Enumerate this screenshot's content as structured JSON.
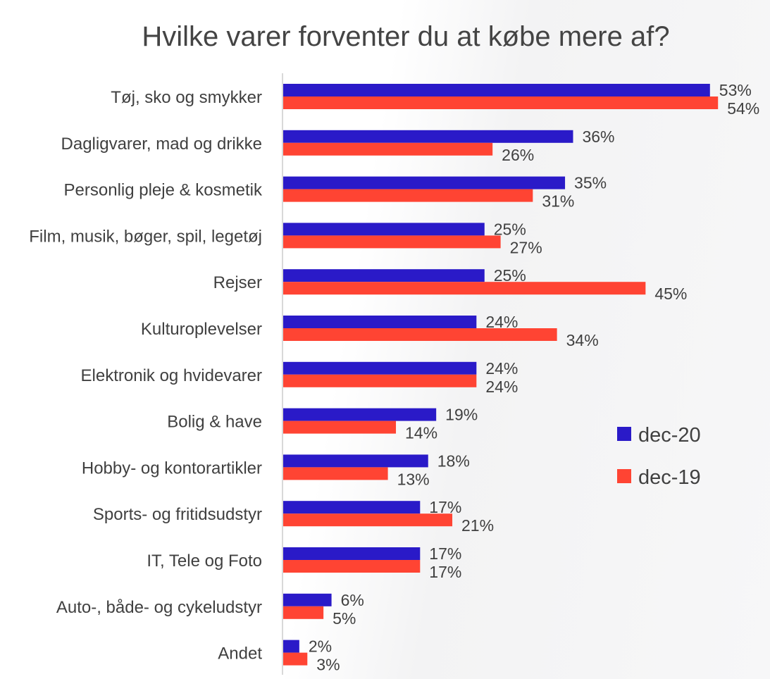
{
  "chart_data": {
    "type": "bar",
    "orientation": "horizontal",
    "title": "Hvilke varer forventer du at købe mere af?",
    "categories": [
      "Tøj, sko og smykker",
      "Dagligvarer, mad og drikke",
      "Personlig pleje & kosmetik",
      "Film, musik, bøger, spil, legetøj",
      "Rejser",
      "Kulturoplevelser",
      "Elektronik og hvidevarer",
      "Bolig & have",
      "Hobby- og kontorartikler",
      "Sports- og fritidsudstyr",
      "IT, Tele og Foto",
      "Auto-, både- og cykeludstyr",
      "Andet"
    ],
    "series": [
      {
        "name": "dec-20",
        "color": "#2a1ac8",
        "values": [
          53,
          36,
          35,
          25,
          25,
          24,
          24,
          19,
          18,
          17,
          17,
          6,
          2
        ],
        "labels": [
          "53%",
          "36%",
          "35%",
          "25%",
          "25%",
          "24%",
          "24%",
          "19%",
          "18%",
          "17%",
          "17%",
          "6%",
          "2%"
        ]
      },
      {
        "name": "dec-19",
        "color": "#ff4433",
        "values": [
          54,
          26,
          31,
          27,
          45,
          34,
          24,
          14,
          13,
          21,
          17,
          5,
          3
        ],
        "labels": [
          "54%",
          "26%",
          "31%",
          "27%",
          "45%",
          "34%",
          "24%",
          "14%",
          "13%",
          "21%",
          "17%",
          "5%",
          "3%"
        ]
      }
    ],
    "xlim": [
      0,
      60
    ],
    "xlabel": "",
    "ylabel": "",
    "grid": false,
    "legend": "right"
  }
}
